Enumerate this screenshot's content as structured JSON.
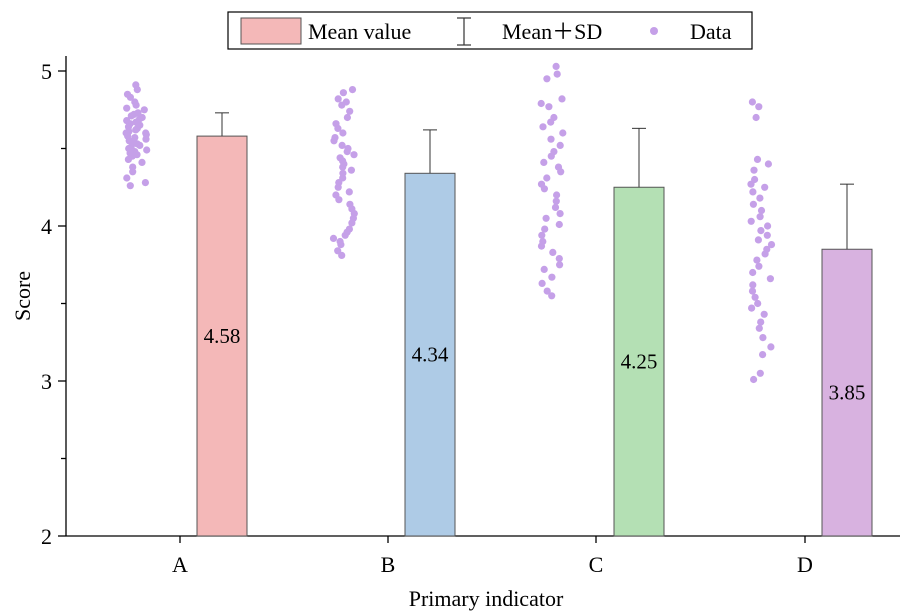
{
  "chart_data": {
    "type": "bar",
    "title": "",
    "xlabel": "Primary indicator",
    "ylabel": "Score",
    "ylim": [
      2,
      5
    ],
    "yticks": [
      2,
      3,
      4,
      5
    ],
    "grid": false,
    "legend_placement": "top-center",
    "legend": {
      "mean": "Mean value",
      "sd": "Mean＋SD",
      "data": "Data"
    },
    "categories": [
      "A",
      "B",
      "C",
      "D"
    ],
    "values": [
      4.58,
      4.34,
      4.25,
      3.85
    ],
    "value_labels": [
      "4.58",
      "4.34",
      "4.25",
      "3.85"
    ],
    "sd": [
      0.15,
      0.28,
      0.38,
      0.42
    ],
    "bar_colors": [
      "#f4b8b8",
      "#aecbe6",
      "#b4e0b4",
      "#d8b2e0"
    ],
    "data_color": "#c5a0e8",
    "data_points": [
      [
        4.91,
        4.88,
        4.85,
        4.83,
        4.8,
        4.78,
        4.76,
        4.75,
        4.73,
        4.72,
        4.71,
        4.7,
        4.69,
        4.68,
        4.67,
        4.66,
        4.65,
        4.64,
        4.63,
        4.62,
        4.61,
        4.6,
        4.6,
        4.59,
        4.58,
        4.57,
        4.56,
        4.55,
        4.54,
        4.53,
        4.52,
        4.51,
        4.5,
        4.49,
        4.48,
        4.47,
        4.46,
        4.45,
        4.43,
        4.41,
        4.38,
        4.35,
        4.31,
        4.28,
        4.26
      ],
      [
        4.88,
        4.86,
        4.82,
        4.8,
        4.78,
        4.74,
        4.7,
        4.66,
        4.63,
        4.6,
        4.57,
        4.55,
        4.52,
        4.5,
        4.48,
        4.46,
        4.44,
        4.42,
        4.4,
        4.38,
        4.36,
        4.34,
        4.31,
        4.28,
        4.25,
        4.22,
        4.2,
        4.17,
        4.14,
        4.11,
        4.08,
        4.05,
        4.02,
        3.98,
        3.96,
        3.94,
        3.92,
        3.9,
        3.88,
        3.84,
        3.81
      ],
      [
        5.03,
        4.98,
        4.95,
        4.82,
        4.79,
        4.77,
        4.7,
        4.67,
        4.64,
        4.6,
        4.56,
        4.52,
        4.48,
        4.45,
        4.41,
        4.38,
        4.35,
        4.31,
        4.27,
        4.24,
        4.2,
        4.16,
        4.12,
        4.08,
        4.05,
        4.01,
        3.98,
        3.94,
        3.9,
        3.87,
        3.83,
        3.79,
        3.75,
        3.72,
        3.67,
        3.63,
        3.58,
        3.55
      ],
      [
        4.8,
        4.77,
        4.7,
        4.43,
        4.4,
        4.36,
        4.3,
        4.27,
        4.25,
        4.22,
        4.18,
        4.14,
        4.1,
        4.06,
        4.03,
        4.0,
        3.97,
        3.94,
        3.91,
        3.88,
        3.85,
        3.82,
        3.78,
        3.74,
        3.7,
        3.66,
        3.62,
        3.58,
        3.54,
        3.5,
        3.47,
        3.43,
        3.38,
        3.34,
        3.28,
        3.22,
        3.17,
        3.05,
        3.01
      ]
    ]
  }
}
